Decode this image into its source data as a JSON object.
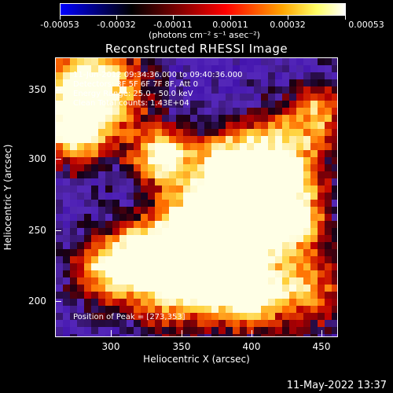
{
  "colorbar": {
    "tick_labels": [
      "-0.00053",
      "-0.00032",
      "-0.00011",
      "0.00011",
      "0.00032",
      "0.00053"
    ],
    "units": "(photons cm⁻² s⁻¹ asec⁻²)"
  },
  "title": "Reconstructed RHESSI Image",
  "info_lines": [
    "11-Jun-2012 09:34:36.000 to 09:40:36.000",
    "Detectors: 3F 5F 6F 7F 8F, Att 0",
    "Energy Range: 25.0 - 50.0 keV",
    "Clean     Total counts: 1.43E+04"
  ],
  "peak_text": "Position of Peak = [273,353]",
  "x_axis": {
    "label": "Heliocentric X (arcsec)",
    "tick_labels": [
      "300",
      "350",
      "400",
      "450"
    ]
  },
  "y_axis": {
    "label": "Heliocentric Y (arcsec)",
    "tick_labels": [
      "350",
      "300",
      "250",
      "200"
    ]
  },
  "timestamp": "11-May-2022 13:37",
  "colors": {
    "background": "#000000",
    "low": "#0000ff",
    "mid": "#000000",
    "high": "#ffffff"
  }
}
